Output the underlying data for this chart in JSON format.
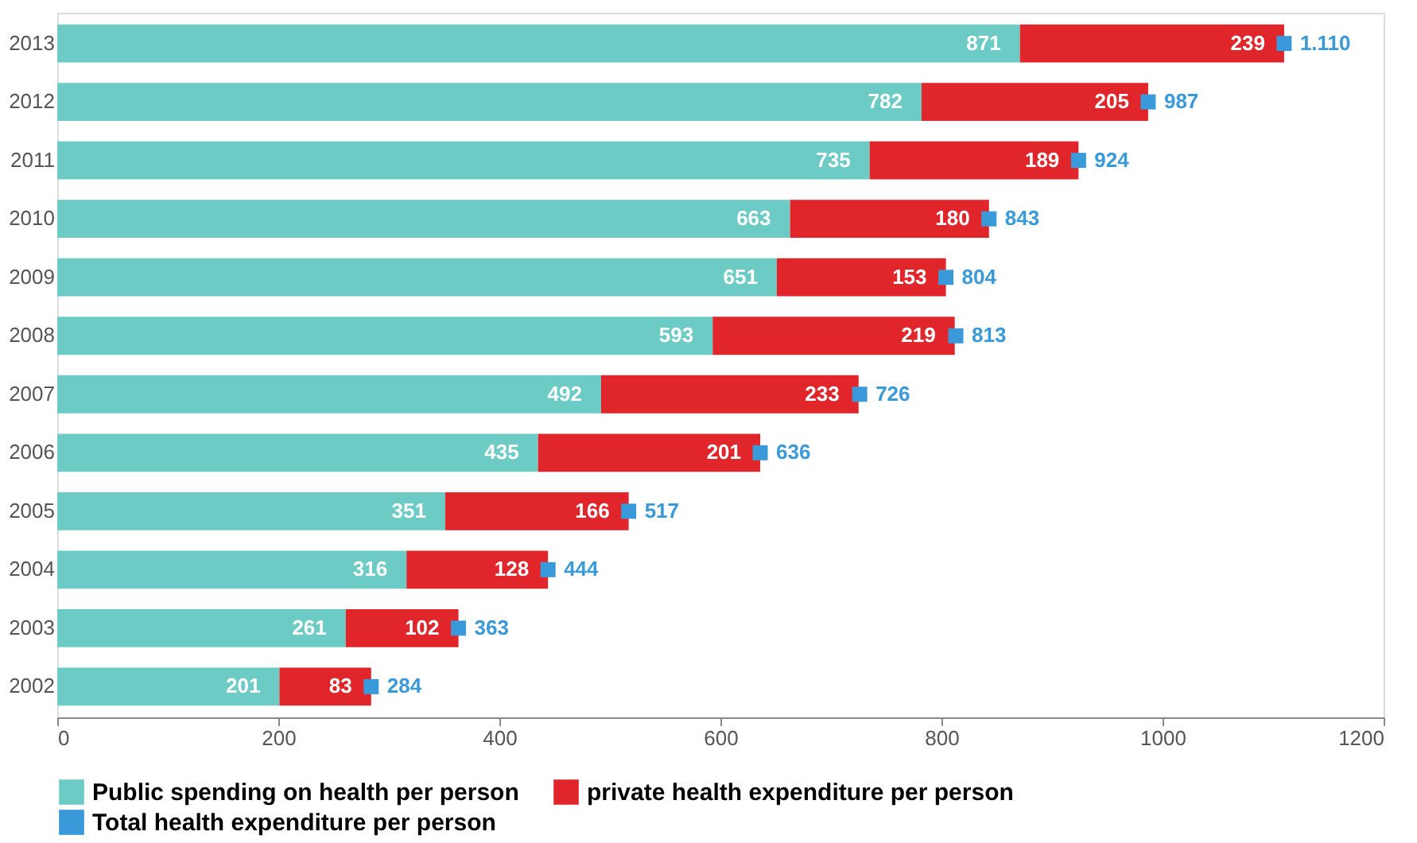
{
  "chart_data": {
    "type": "bar",
    "orientation": "horizontal",
    "stacked": true,
    "data_labels": true,
    "categories": [
      "2013",
      "2012",
      "2011",
      "2010",
      "2009",
      "2008",
      "2007",
      "2006",
      "2005",
      "2004",
      "2003",
      "2002"
    ],
    "series": [
      {
        "name": "Public spending on health per person",
        "color": "#6ccbc4",
        "values": [
          871,
          782,
          735,
          663,
          651,
          593,
          492,
          435,
          351,
          316,
          261,
          201
        ]
      },
      {
        "name": "private health expenditure per person",
        "color": "#e0262b",
        "values": [
          239,
          205,
          189,
          180,
          153,
          219,
          233,
          201,
          166,
          128,
          102,
          83
        ]
      },
      {
        "name": "Total health expenditure per person",
        "type": "scatter",
        "marker": "square",
        "color": "#3a9ad9",
        "values": [
          1110,
          987,
          924,
          843,
          804,
          813,
          726,
          636,
          517,
          444,
          363,
          284
        ],
        "value_labels": [
          "1.110",
          "987",
          "924",
          "843",
          "804",
          "813",
          "726",
          "636",
          "517",
          "444",
          "363",
          "284"
        ]
      }
    ],
    "xlim": [
      0,
      1200
    ],
    "xticks": [
      0,
      200,
      400,
      600,
      800,
      1000,
      1200
    ],
    "grid": false,
    "legend": "bottom"
  }
}
